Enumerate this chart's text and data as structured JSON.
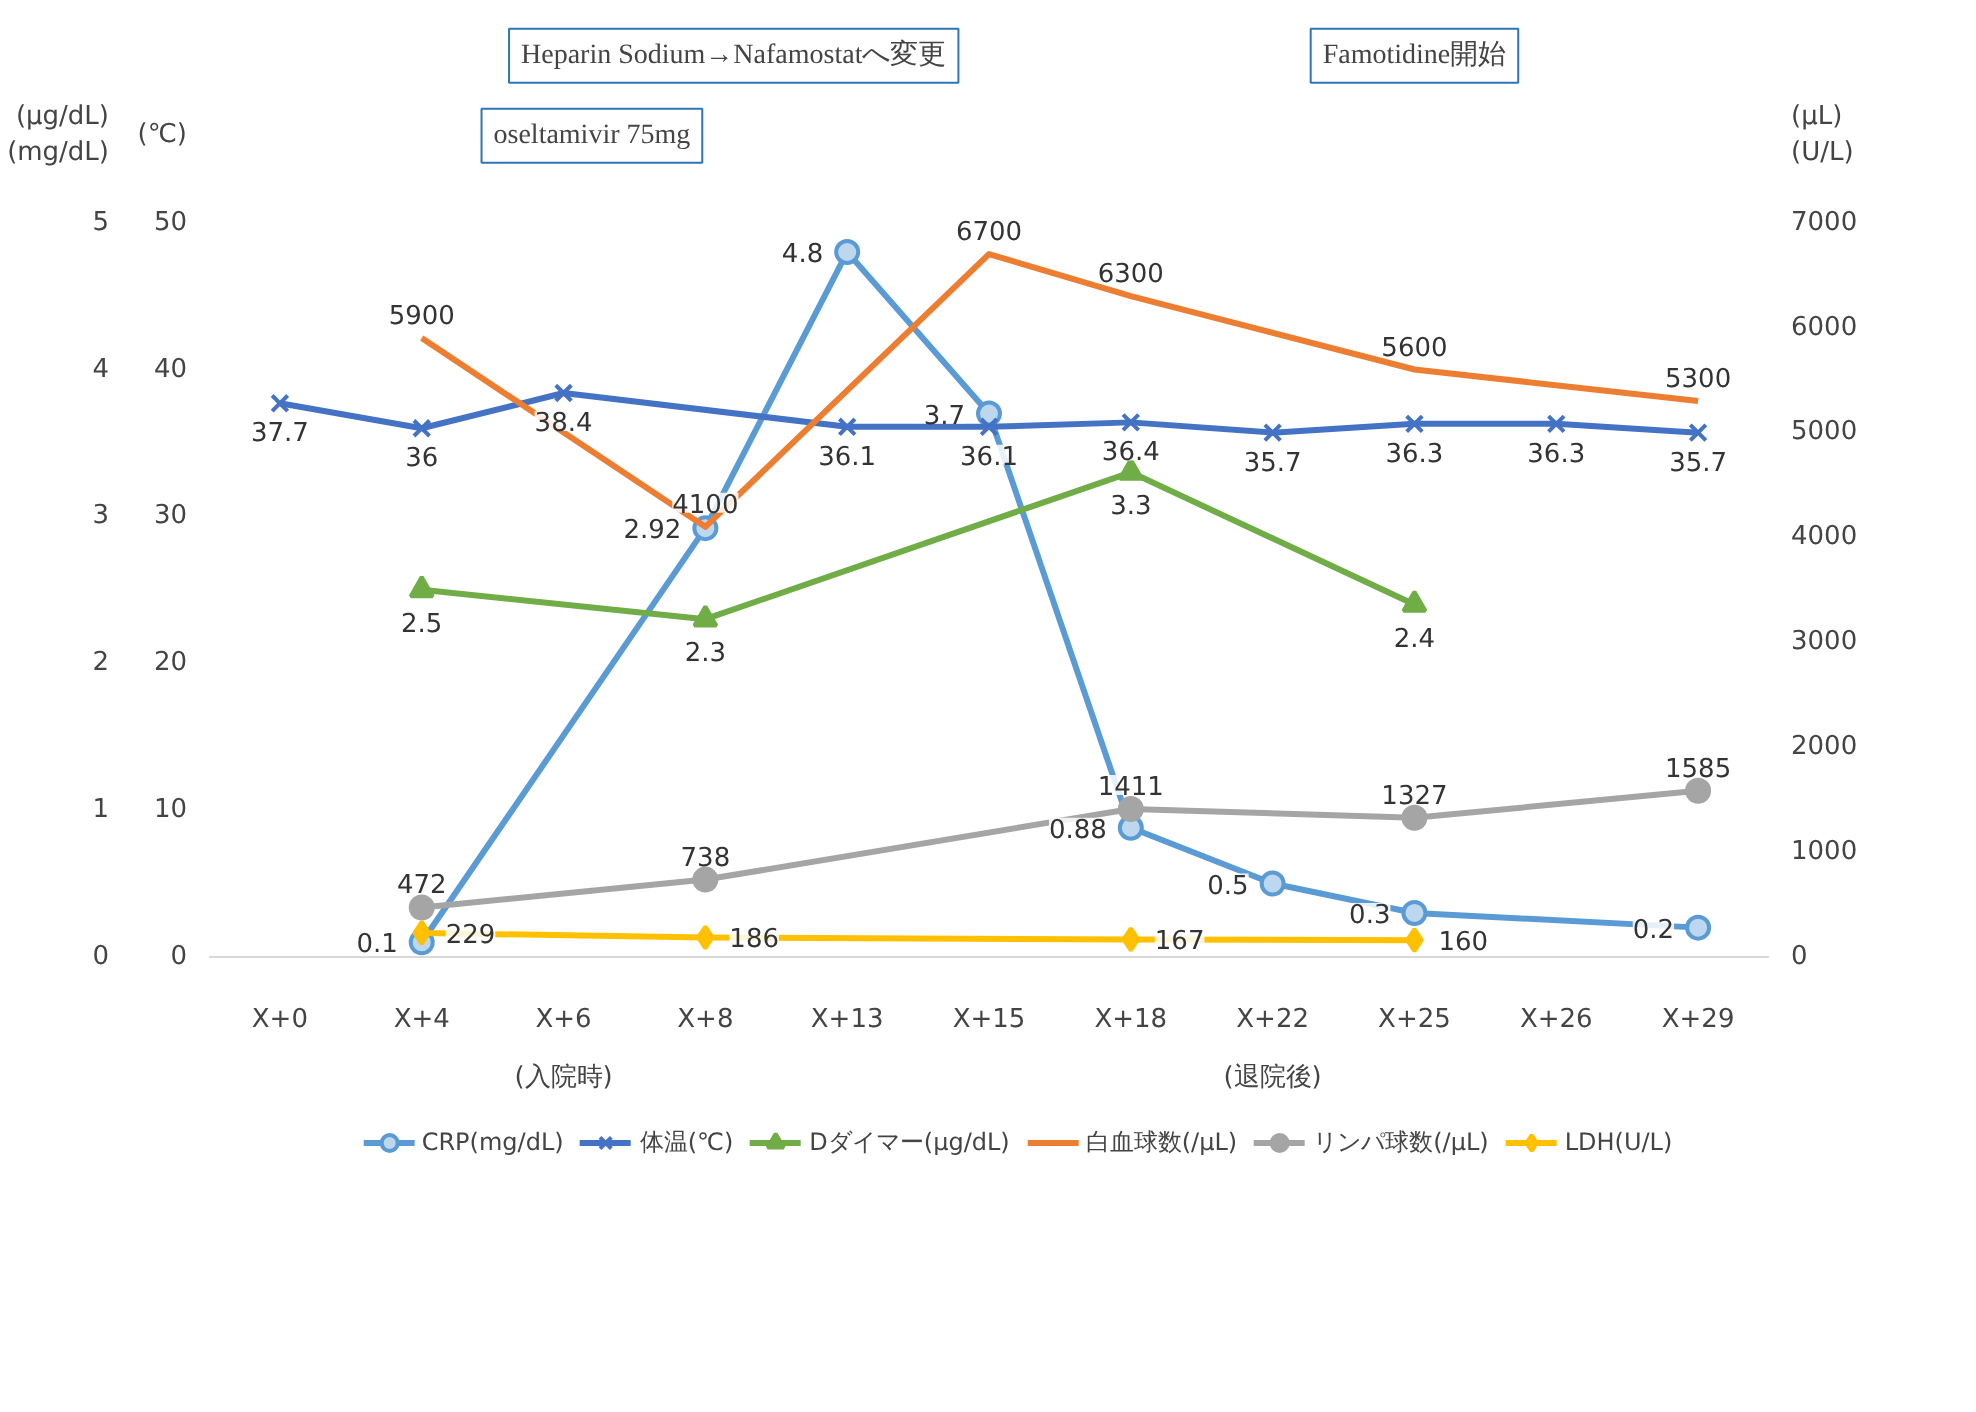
{
  "chart_data": {
    "type": "line",
    "categories": [
      "X+0",
      "X+4",
      "X+6",
      "X+8",
      "X+13",
      "X+15",
      "X+18",
      "X+22",
      "X+25",
      "X+26",
      "X+29"
    ],
    "ylabel": "(℃)",
    "ylim": [
      0,
      50
    ],
    "yticks": [
      0,
      10,
      20,
      30,
      40,
      50
    ],
    "y2label": "(μg/dL)\n(mg/dL)",
    "y2lim": [
      0,
      5
    ],
    "y2ticks": [
      0,
      1,
      2,
      3,
      4,
      5
    ],
    "y3label": "(μL)\n(U/L)",
    "y3lim": [
      0,
      7000
    ],
    "y3ticks": [
      0,
      1000,
      2000,
      3000,
      4000,
      5000,
      6000,
      7000
    ],
    "grid": false,
    "legend": "bottom",
    "data_labels": true,
    "series": [
      {
        "name": "CRP(mg/dL)",
        "color": "#5b9bd5",
        "axis": "y2",
        "marker": "circle",
        "values": [
          null,
          0.1,
          null,
          2.92,
          4.8,
          3.7,
          0.88,
          0.5,
          0.3,
          null,
          0.2
        ]
      },
      {
        "name": "体温(℃)",
        "color": "#4472c4",
        "axis": "y",
        "marker": "cross",
        "values": [
          37.7,
          36,
          38.4,
          null,
          36.1,
          36.1,
          36.4,
          35.7,
          36.3,
          36.3,
          35.7
        ]
      },
      {
        "name": "Dダイマー(μg/dL)",
        "color": "#70ad47",
        "axis": "y2",
        "marker": "triangle",
        "values": [
          null,
          2.5,
          null,
          2.3,
          null,
          null,
          3.3,
          null,
          2.4,
          null,
          null
        ]
      },
      {
        "name": "白血球数(/μL)",
        "color": "#ed7d31",
        "axis": "y3",
        "marker": "none",
        "values": [
          null,
          5900,
          null,
          4100,
          null,
          6700,
          6300,
          null,
          5600,
          null,
          5300
        ]
      },
      {
        "name": "リンパ球数(/μL)",
        "color": "#a5a5a5",
        "axis": "y3",
        "marker": "circle",
        "values": [
          null,
          472,
          null,
          738,
          null,
          null,
          1411,
          null,
          1327,
          null,
          1585
        ]
      },
      {
        "name": "LDH(U/L)",
        "color": "#ffc000",
        "axis": "y3",
        "marker": "diamond",
        "values": [
          null,
          229,
          null,
          186,
          null,
          null,
          167,
          null,
          160,
          null,
          null
        ]
      }
    ],
    "annotations": [
      "Heparin Sodium→Nafamostatへ変更",
      "Famotidine開始",
      "oseltamivir 75mg",
      "(入院時)",
      "(退院後)"
    ]
  }
}
